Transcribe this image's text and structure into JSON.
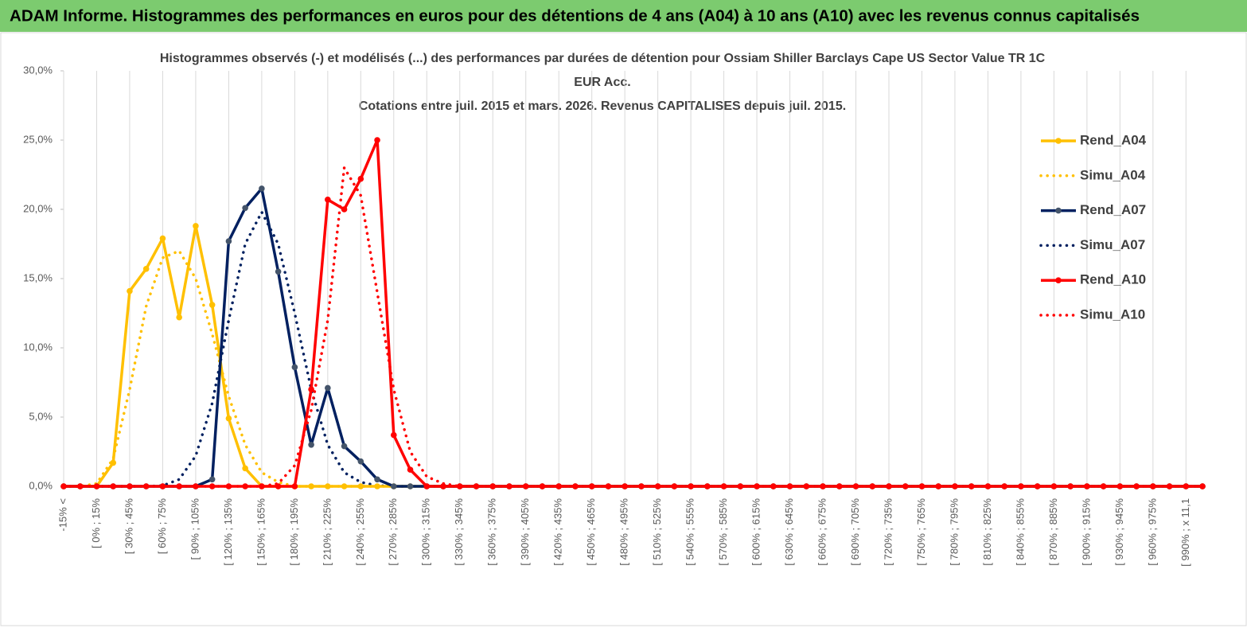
{
  "header": "ADAM Informe. Histogrammes des performances en euros pour des détentions de 4 ans (A04) à 10 ans (A10) avec les revenus connus capitalisés",
  "chart_data": {
    "type": "line",
    "title": [
      "Histogrammes observés (-) et modélisés (...)  des performances par durées de détention pour Ossiam Shiller Barclays Cape US Sector Value TR 1C",
      "EUR Acc.",
      "Cotations entre juil. 2015 et mars. 2026. Revenus CAPITALISES depuis juil. 2015."
    ],
    "categories": [
      "-15% <",
      null,
      "[ 0% ; 15%",
      null,
      "[ 30% ; 45%",
      null,
      "[ 60% ; 75%",
      null,
      "[ 90% ; 105%",
      null,
      "[ 120% ; 135%",
      null,
      "[ 150% ; 165%",
      null,
      "[ 180% ; 195%",
      null,
      "[ 210% ; 225%",
      null,
      "[ 240% ; 255%",
      null,
      "[ 270% ; 285%",
      null,
      "[ 300% ; 315%",
      null,
      "[ 330% ; 345%",
      null,
      "[ 360% ; 375%",
      null,
      "[ 390% ; 405%",
      null,
      "[ 420% ; 435%",
      null,
      "[ 450% ; 465%",
      null,
      "[ 480% ; 495%",
      null,
      "[ 510% ; 525%",
      null,
      "[ 540% ; 555%",
      null,
      "[ 570% ; 585%",
      null,
      "[ 600% ; 615%",
      null,
      "[ 630% ; 645%",
      null,
      "[ 660% ; 675%",
      null,
      "[ 690% ; 705%",
      null,
      "[ 720% ; 735%",
      null,
      "[ 750% ; 765%",
      null,
      "[ 780% ; 795%",
      null,
      "[ 810% ; 825%",
      null,
      "[ 840% ; 855%",
      null,
      "[ 870% ; 885%",
      null,
      "[ 900% ; 915%",
      null,
      "[ 930% ; 945%",
      null,
      "[ 960% ; 975%",
      null,
      "[ 990% ; x 11,1",
      null
    ],
    "series": [
      {
        "name": "Rend_A04",
        "color": "#ffc000",
        "dash": "solid",
        "markers": true,
        "marker_color": "#ffc000",
        "values": [
          0,
          0,
          0,
          1.7,
          14.1,
          15.7,
          17.9,
          12.2,
          18.8,
          13.1,
          4.9,
          1.3,
          0,
          0,
          0,
          0,
          0,
          0,
          0,
          0,
          0,
          0,
          0,
          0,
          0,
          0,
          0,
          0,
          0,
          0,
          0,
          0,
          0,
          0,
          0,
          0,
          0,
          0,
          0,
          0,
          0,
          0,
          0,
          0,
          0,
          0,
          0,
          0,
          0,
          0,
          0,
          0,
          0,
          0,
          0,
          0,
          0,
          0,
          0,
          0,
          0,
          0,
          0,
          0,
          0,
          0,
          0,
          0,
          0,
          0
        ]
      },
      {
        "name": "Simu_A04",
        "color": "#ffc000",
        "dash": "dotted",
        "markers": false,
        "values": [
          0,
          0,
          0.2,
          2,
          7,
          13,
          16.5,
          17,
          15,
          11,
          6.5,
          3,
          1,
          0.3,
          0,
          0,
          0,
          0,
          0,
          0,
          0,
          0,
          0,
          0,
          0,
          0,
          0,
          0,
          0,
          0,
          0,
          0,
          0,
          0,
          0,
          0,
          0,
          0,
          0,
          0,
          0,
          0,
          0,
          0,
          0,
          0,
          0,
          0,
          0,
          0,
          0,
          0,
          0,
          0,
          0,
          0,
          0,
          0,
          0,
          0,
          0,
          0,
          0,
          0,
          0,
          0,
          0,
          0,
          0,
          0
        ]
      },
      {
        "name": "Rend_A07",
        "color": "#002060",
        "dash": "solid",
        "markers": true,
        "marker_color": "#44546a",
        "values": [
          0,
          0,
          0,
          0,
          0,
          0,
          0,
          0,
          0,
          0.5,
          17.7,
          20.1,
          21.5,
          15.5,
          8.6,
          3.0,
          7.1,
          2.9,
          1.8,
          0.5,
          0,
          0,
          0,
          0,
          0,
          0,
          0,
          0,
          0,
          0,
          0,
          0,
          0,
          0,
          0,
          0,
          0,
          0,
          0,
          0,
          0,
          0,
          0,
          0,
          0,
          0,
          0,
          0,
          0,
          0,
          0,
          0,
          0,
          0,
          0,
          0,
          0,
          0,
          0,
          0,
          0,
          0,
          0,
          0,
          0,
          0,
          0,
          0,
          0,
          0
        ]
      },
      {
        "name": "Simu_A07",
        "color": "#002060",
        "dash": "dotted",
        "markers": false,
        "values": [
          0,
          0,
          0,
          0,
          0,
          0,
          0.05,
          0.5,
          2.2,
          6,
          12,
          17.5,
          19.8,
          17.5,
          12.5,
          7,
          3,
          1,
          0.3,
          0.05,
          0,
          0,
          0,
          0,
          0,
          0,
          0,
          0,
          0,
          0,
          0,
          0,
          0,
          0,
          0,
          0,
          0,
          0,
          0,
          0,
          0,
          0,
          0,
          0,
          0,
          0,
          0,
          0,
          0,
          0,
          0,
          0,
          0,
          0,
          0,
          0,
          0,
          0,
          0,
          0,
          0,
          0,
          0,
          0,
          0,
          0,
          0,
          0,
          0,
          0
        ]
      },
      {
        "name": "Rend_A10",
        "color": "#ff0000",
        "dash": "solid",
        "markers": true,
        "marker_color": "#ff0000",
        "values": [
          0,
          0,
          0,
          0,
          0,
          0,
          0,
          0,
          0,
          0,
          0,
          0,
          0,
          0,
          0,
          7.0,
          20.7,
          20.0,
          22.2,
          25.0,
          3.7,
          1.2,
          0,
          0,
          0,
          0,
          0,
          0,
          0,
          0,
          0,
          0,
          0,
          0,
          0,
          0,
          0,
          0,
          0,
          0,
          0,
          0,
          0,
          0,
          0,
          0,
          0,
          0,
          0,
          0,
          0,
          0,
          0,
          0,
          0,
          0,
          0,
          0,
          0,
          0,
          0,
          0,
          0,
          0,
          0,
          0,
          0,
          0,
          0,
          0
        ]
      },
      {
        "name": "Simu_A10",
        "color": "#ff0000",
        "dash": "dotted",
        "markers": false,
        "values": [
          0,
          0,
          0,
          0,
          0,
          0,
          0,
          0,
          0,
          0,
          0,
          0,
          0,
          0.2,
          1.5,
          5.5,
          12,
          23,
          21,
          14,
          7,
          2.5,
          0.7,
          0.2,
          0,
          0,
          0,
          0,
          0,
          0,
          0,
          0,
          0,
          0,
          0,
          0,
          0,
          0,
          0,
          0,
          0,
          0,
          0,
          0,
          0,
          0,
          0,
          0,
          0,
          0,
          0,
          0,
          0,
          0,
          0,
          0,
          0,
          0,
          0,
          0,
          0,
          0,
          0,
          0,
          0,
          0,
          0,
          0,
          0,
          0
        ]
      }
    ],
    "ylim": [
      0,
      30
    ],
    "yticks": [
      {
        "value": 0,
        "label": "0,0%"
      },
      {
        "value": 5,
        "label": "5,0%"
      },
      {
        "value": 10,
        "label": "10,0%"
      },
      {
        "value": 15,
        "label": "15,0%"
      },
      {
        "value": 20,
        "label": "20,0%"
      },
      {
        "value": 25,
        "label": "25,0%"
      },
      {
        "value": 30,
        "label": "30,0%"
      }
    ],
    "grid": "x",
    "legend": "right"
  }
}
